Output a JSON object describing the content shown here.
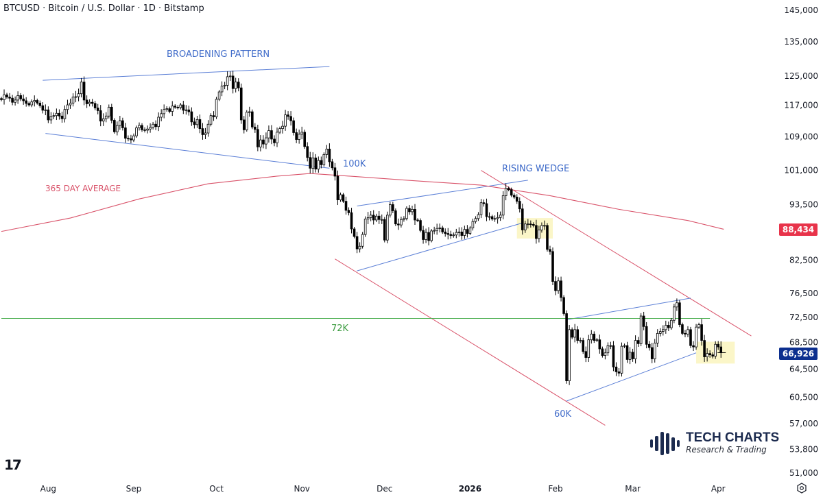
{
  "header": {
    "title": "BTCUSD · Bitcoin / U.S. Dollar · 1D · Bitstamp"
  },
  "chart_data": {
    "type": "candlestick",
    "symbol": "BTCUSD",
    "interval": "1D",
    "y_scale": "log",
    "ylim": [
      51000,
      145000
    ],
    "start_date": "2025-07-15",
    "closes": [
      118500,
      119800,
      119200,
      118900,
      117800,
      118400,
      119600,
      118700,
      118200,
      117500,
      117100,
      117900,
      118300,
      117600,
      116900,
      115700,
      115800,
      113200,
      114100,
      114300,
      114900,
      114200,
      113500,
      115900,
      117100,
      117600,
      119200,
      119300,
      120100,
      123300,
      118400,
      117400,
      117800,
      117500,
      116300,
      115600,
      112900,
      113500,
      114200,
      116500,
      113100,
      110200,
      111800,
      113000,
      111200,
      108600,
      108500,
      108200,
      109200,
      111200,
      111800,
      110700,
      110600,
      110900,
      111300,
      112100,
      111500,
      113900,
      114800,
      115900,
      116100,
      115400,
      116800,
      116500,
      116400,
      117100,
      115700,
      115800,
      115300,
      112700,
      112000,
      113300,
      111000,
      109500,
      109900,
      112100,
      114300,
      114000,
      118600,
      120600,
      122200,
      122400,
      124800,
      125000,
      121500,
      123300,
      121700,
      113200,
      110700,
      115200,
      115300,
      111400,
      110800,
      106500,
      108200,
      107200,
      108700,
      110500,
      108400,
      107500,
      110100,
      111000,
      111600,
      114500,
      114100,
      113000,
      110000,
      108300,
      109600,
      110100,
      106600,
      104000,
      101500,
      103900,
      101300,
      103300,
      102300,
      104700,
      106000,
      103000,
      101600,
      99700,
      94500,
      95600,
      94200,
      92300,
      91800,
      88500,
      87000,
      84600,
      85100,
      87400,
      90500,
      90800,
      91300,
      90300,
      91100,
      90400,
      90400,
      86300,
      91300,
      93500,
      92200,
      89500,
      89300,
      90400,
      90600,
      92700,
      92000,
      92500,
      90300,
      90200,
      88200,
      86400,
      87800,
      86200,
      88100,
      88200,
      88600,
      88700,
      87900,
      87600,
      87400,
      87200,
      87300,
      87800,
      87900,
      87200,
      88400,
      87600,
      88700,
      90000,
      90600,
      91400,
      93900,
      93700,
      91000,
      91000,
      90500,
      90600,
      90800,
      91300,
      95400,
      97000,
      96700,
      95500,
      95100,
      94200,
      92600,
      88300,
      89500,
      89500,
      89400,
      89200,
      86600,
      88300,
      89200,
      89200,
      84500,
      84100,
      78600,
      77000,
      78700,
      75800,
      73100,
      62800,
      70500,
      69300,
      70500,
      68800,
      68800,
      67100,
      66200,
      68900,
      69800,
      68800,
      68900,
      67500,
      66500,
      66900,
      68000,
      68000,
      64800,
      64100,
      63900,
      67900,
      68000,
      65900,
      67000,
      66000,
      68800,
      68300,
      72700,
      71000,
      68200,
      67700,
      66000,
      68400,
      69900,
      70200,
      70500,
      71200,
      70800,
      72000,
      74200,
      74900,
      71300,
      69900,
      69800,
      70500,
      68000,
      67800,
      70900,
      71300,
      68800,
      66300,
      66800,
      66600,
      66400,
      68200,
      67800,
      66926
    ],
    "y_ticks": [
      145000,
      135000,
      125000,
      117000,
      109000,
      101000,
      93500,
      82500,
      76500,
      72500,
      68500,
      64500,
      60500,
      57000,
      53800,
      51000
    ],
    "y_tick_labels": [
      "145,000",
      "135,000",
      "125,000",
      "117,000",
      "109,000",
      "101,000",
      "93,500",
      "82,500",
      "76,500",
      "72,500",
      "68,500",
      "64,500",
      "60,500",
      "57,000",
      "53,800",
      "51,000"
    ],
    "x_ticks": [
      {
        "date": "2025-08-01",
        "label": "Aug"
      },
      {
        "date": "2025-09-01",
        "label": "Sep"
      },
      {
        "date": "2025-10-01",
        "label": "Oct"
      },
      {
        "date": "2025-11-01",
        "label": "Nov"
      },
      {
        "date": "2025-12-01",
        "label": "Dec"
      },
      {
        "date": "2026-01-01",
        "label": "2026"
      },
      {
        "date": "2026-02-01",
        "label": "Feb"
      },
      {
        "date": "2026-03-01",
        "label": "Mar"
      },
      {
        "date": "2026-04-01",
        "label": "Apr"
      }
    ],
    "last_price": {
      "value": 66926,
      "label": "66,926",
      "color": "#0c2f8f"
    },
    "ma_price": {
      "value": 88434,
      "label": "88,434",
      "color": "#e8334a"
    },
    "moving_average": {
      "name": "365 DAY AVERAGE",
      "color": "#d9536a",
      "points": [
        [
          "2025-07-15",
          88000
        ],
        [
          "2025-08-09",
          90700
        ],
        [
          "2025-09-03",
          94700
        ],
        [
          "2025-09-28",
          98000
        ],
        [
          "2025-10-23",
          99700
        ],
        [
          "2025-11-04",
          100300
        ],
        [
          "2025-11-16",
          99800
        ],
        [
          "2025-12-11",
          98700
        ],
        [
          "2026-01-05",
          97700
        ],
        [
          "2026-01-30",
          95400
        ],
        [
          "2026-02-24",
          92500
        ],
        [
          "2026-03-21",
          90200
        ],
        [
          "2026-04-03",
          88434
        ]
      ]
    },
    "trendlines": [
      {
        "name": "broadening-top",
        "color": "#5b7fd6",
        "from": [
          "2025-07-30",
          123800
        ],
        "to": [
          "2025-11-11",
          127700
        ]
      },
      {
        "name": "broadening-bottom",
        "color": "#5b7fd6",
        "from": [
          "2025-07-31",
          109800
        ],
        "to": [
          "2025-11-11",
          101500
        ]
      },
      {
        "name": "rising-wedge-top",
        "color": "#5b7fd6",
        "from": [
          "2025-11-21",
          93200
        ],
        "to": [
          "2026-01-22",
          98800
        ]
      },
      {
        "name": "rising-wedge-bottom",
        "color": "#5b7fd6",
        "from": [
          "2025-11-21",
          80500
        ],
        "to": [
          "2026-01-20",
          89700
        ]
      },
      {
        "name": "channel-top",
        "color": "#d9536a",
        "from": [
          "2026-01-05",
          101000
        ],
        "to": [
          "2026-04-13",
          69500
        ]
      },
      {
        "name": "channel-bottom",
        "color": "#d9536a",
        "from": [
          "2025-11-13",
          82700
        ],
        "to": [
          "2026-02-19",
          56800
        ]
      },
      {
        "name": "final-wedge-top",
        "color": "#5b7fd6",
        "from": [
          "2026-02-05",
          72100
        ],
        "to": [
          "2026-03-22",
          75700
        ]
      },
      {
        "name": "final-wedge-bottom",
        "color": "#5b7fd6",
        "from": [
          "2026-02-05",
          60000
        ],
        "to": [
          "2026-03-24",
          66900
        ]
      },
      {
        "name": "level-72k",
        "color": "#4caf50",
        "from": [
          "2025-07-15",
          72300
        ],
        "to": [
          "2026-03-29",
          72300
        ]
      }
    ],
    "highlights": [
      {
        "from": [
          "2026-01-18",
          90700
        ],
        "to": [
          "2026-01-31",
          86600
        ],
        "color": "#fbf6c8"
      },
      {
        "from": [
          "2026-03-24",
          68600
        ],
        "to": [
          "2026-04-07",
          65300
        ],
        "color": "#fbf6c8"
      }
    ],
    "annotations": {
      "broadening": {
        "text": "BROADENING PATTERN",
        "color": "#3f6bc9"
      },
      "k100": {
        "text": "100K",
        "color": "#3f6bc9"
      },
      "ma": {
        "text": "365 DAY AVERAGE",
        "color": "#d9536a"
      },
      "wedge": {
        "text": "RISING WEDGE",
        "color": "#3f6bc9"
      },
      "k72": {
        "text": "72K",
        "color": "#3a9a3e"
      },
      "k60": {
        "text": "60K",
        "color": "#3f6bc9"
      }
    }
  },
  "branding": {
    "name": "TECH CHARTS",
    "tagline": "Research & Trading",
    "platform_logo": "TV"
  },
  "icons": {
    "settings": "hexagon-settings-icon"
  }
}
